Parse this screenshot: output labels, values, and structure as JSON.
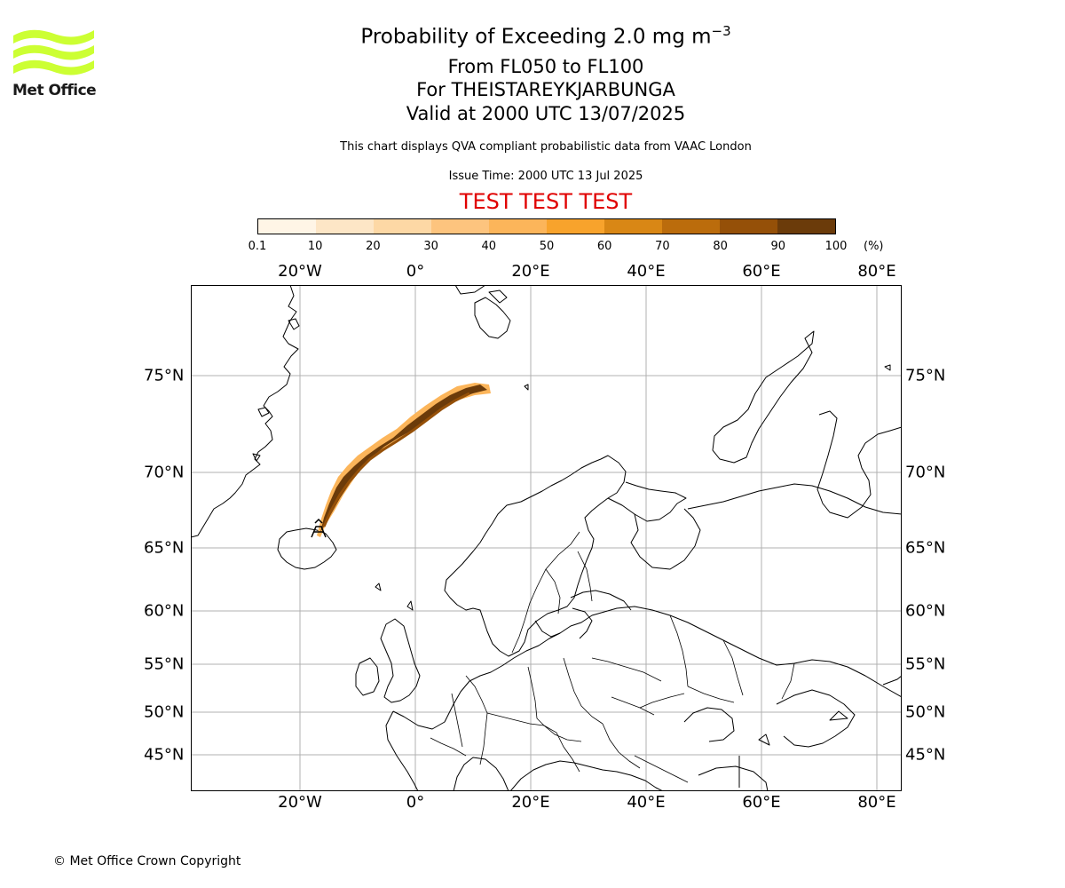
{
  "header": {
    "title": "Probability of Exceeding 2.0 mg m",
    "title_superscript": "−3",
    "level_range": "From FL050 to FL100",
    "volcano": "For THEISTAREYKJARBUNGA",
    "valid_time": "Valid at 2000 UTC 13/07/2025",
    "note": "This chart displays QVA compliant probabilistic data from VAAC London",
    "issue_time": "Issue Time: 2000 UTC 13 Jul 2025",
    "test_banner": "TEST TEST TEST"
  },
  "logo": {
    "text": "Met Office",
    "color": "#ccff33"
  },
  "colorbar": {
    "colors": [
      "#fff5e6",
      "#fde6c6",
      "#fdd8a5",
      "#fdc47e",
      "#fcb55a",
      "#f8a32c",
      "#d98715",
      "#bb6c0c",
      "#955008",
      "#6b3b0a"
    ],
    "tick_labels": [
      "0.1",
      "10",
      "20",
      "30",
      "40",
      "50",
      "60",
      "70",
      "80",
      "90",
      "100"
    ],
    "unit": "(%)"
  },
  "map": {
    "lon_labels": [
      "20°W",
      "0°",
      "20°E",
      "40°E",
      "60°E",
      "80°E"
    ],
    "lat_labels": [
      "75°N",
      "70°N",
      "65°N",
      "60°N",
      "55°N",
      "50°N",
      "45°N"
    ],
    "plume_color_core": "#6b3b0a",
    "plume_color_edge": "#fcb55a",
    "volcano_marker": "volcano-icon"
  },
  "footer": {
    "copyright": "© Met Office Crown Copyright"
  }
}
